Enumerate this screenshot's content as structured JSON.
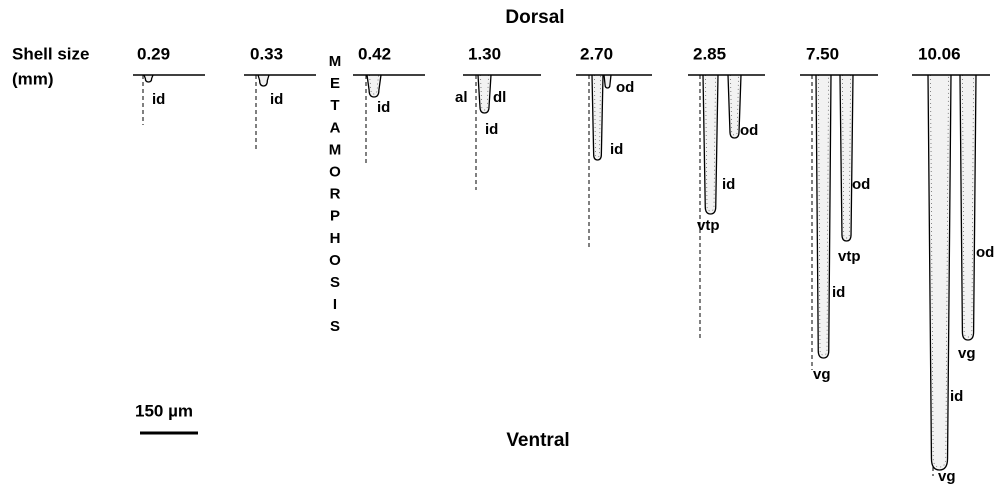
{
  "header": {
    "title": "Dorsal",
    "footer": "Ventral",
    "size_label": [
      "Shell size",
      "(mm)"
    ]
  },
  "metamorphosis": [
    "M",
    "E",
    "T",
    "A",
    "M",
    "O",
    "R",
    "P",
    "H",
    "O",
    "S",
    "I",
    "S"
  ],
  "stages": [
    {
      "size": "0.29",
      "labels": [
        "id"
      ]
    },
    {
      "size": "0.33",
      "labels": [
        "id"
      ]
    },
    {
      "size": "0.42",
      "labels": [
        "id"
      ]
    },
    {
      "size": "1.30",
      "labels": [
        "al",
        "dl",
        "id"
      ]
    },
    {
      "size": "2.70",
      "labels": [
        "od",
        "id"
      ]
    },
    {
      "size": "2.85",
      "labels": [
        "od",
        "id",
        "vtp"
      ]
    },
    {
      "size": "7.50",
      "labels": [
        "od",
        "vtp",
        "id",
        "vg"
      ]
    },
    {
      "size": "10.06",
      "labels": [
        "od",
        "vg",
        "id",
        "vg"
      ]
    }
  ],
  "scale_bar": "150 µm"
}
